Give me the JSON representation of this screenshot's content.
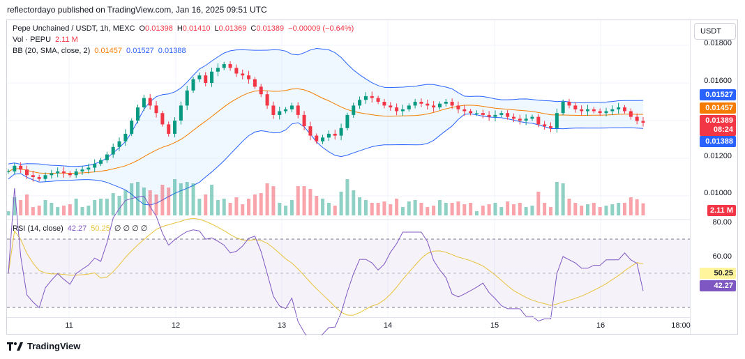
{
  "publish_line": "reflectordayo published on TradingView.com, Jan 16, 2025 09:51 UTC",
  "legend": {
    "symbol": "Pepe Unchained / USDT, 1h, MEXC",
    "o_label": "O",
    "o": "0.01398",
    "h_label": "H",
    "h": "0.01410",
    "l_label": "L",
    "l": "0.01369",
    "c_label": "C",
    "c": "0.01389",
    "change": "−0.00009 (−0.64%)",
    "vol_label": "Vol · PEPU",
    "vol": "2.11 M",
    "bb_label": "BB (20, SMA, close, 2)",
    "bb_mid": "0.01457",
    "bb_up": "0.01527",
    "bb_low": "0.01388",
    "rsi_label": "RSI (14, close)",
    "rsi": "42.27",
    "rsi_ma": "50.25",
    "rsi_zeros": "∅ ∅ ∅ ∅"
  },
  "currency_button": "USDT",
  "price_axis": [
    "0.01800",
    "0.01600",
    "0.01200",
    "0.01000"
  ],
  "rsi_axis": [
    "80.00",
    "60.00"
  ],
  "tags": {
    "bb_up": "0.01527",
    "bb_mid": "0.01457",
    "price": "0.01389",
    "countdown": "08:24",
    "bb_low": "0.01388",
    "volume": "2.11 M",
    "rsi_ma": "50.25",
    "rsi": "42.27"
  },
  "time_axis": [
    "11",
    "12",
    "13",
    "14",
    "15",
    "16",
    "18:00"
  ],
  "footer": "TradingView",
  "colors": {
    "up": "#089981",
    "down": "#f23645",
    "bb_band": "#2962ff",
    "bb_mid": "#f57c00",
    "rsi": "#7e57c2",
    "rsi_ma": "#e8c33c"
  },
  "chart_data": {
    "type": "candlestick",
    "interval": "1h",
    "closes": [
      0.0113,
      0.0116,
      0.0114,
      0.0111,
      0.011,
      0.0109,
      0.0111,
      0.0112,
      0.0113,
      0.0112,
      0.0111,
      0.0113,
      0.0114,
      0.0115,
      0.0117,
      0.0119,
      0.0122,
      0.0126,
      0.0129,
      0.0133,
      0.014,
      0.0147,
      0.0152,
      0.0148,
      0.0144,
      0.0138,
      0.0133,
      0.014,
      0.0148,
      0.0156,
      0.0162,
      0.0164,
      0.016,
      0.0166,
      0.0168,
      0.017,
      0.0168,
      0.0165,
      0.0164,
      0.0162,
      0.0158,
      0.0154,
      0.0148,
      0.0143,
      0.0145,
      0.0146,
      0.0148,
      0.0143,
      0.0137,
      0.0132,
      0.0129,
      0.0131,
      0.0133,
      0.0132,
      0.0136,
      0.0143,
      0.0148,
      0.0151,
      0.0153,
      0.0152,
      0.015,
      0.0148,
      0.0147,
      0.0145,
      0.0146,
      0.0148,
      0.015,
      0.0149,
      0.0148,
      0.0147,
      0.0149,
      0.015,
      0.0148,
      0.0146,
      0.0145,
      0.0144,
      0.0144,
      0.0143,
      0.0142,
      0.0143,
      0.0144,
      0.0142,
      0.0141,
      0.014,
      0.0141,
      0.0142,
      0.0138,
      0.0137,
      0.0136,
      0.0144,
      0.015,
      0.0148,
      0.0146,
      0.0145,
      0.0146,
      0.0145,
      0.0144,
      0.0145,
      0.0146,
      0.0147,
      0.0145,
      0.0142,
      0.01398,
      0.01389
    ]
  }
}
